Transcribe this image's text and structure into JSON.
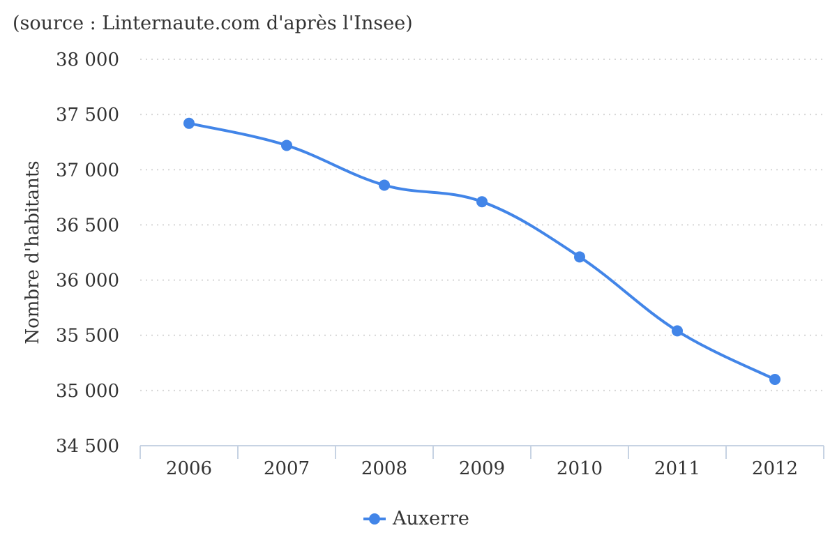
{
  "chart_data": {
    "type": "line",
    "subtitle": "(source : Linternaute.com d'après l'Insee)",
    "ylabel": "Nombre d'habitants",
    "xlabel": "",
    "categories": [
      "2006",
      "2007",
      "2008",
      "2009",
      "2010",
      "2011",
      "2012"
    ],
    "series": [
      {
        "name": "Auxerre",
        "color": "#4285e8",
        "values": [
          37420,
          37220,
          36860,
          36710,
          36210,
          35540,
          35100
        ]
      }
    ],
    "ylim": [
      34500,
      38000
    ],
    "yticks": [
      34500,
      35000,
      35500,
      36000,
      36500,
      37000,
      37500,
      38000
    ],
    "ytick_labels": [
      "34 500",
      "35 000",
      "35 500",
      "36 000",
      "36 500",
      "37 000",
      "37 500",
      "38 000"
    ],
    "grid": true,
    "legend_position": "bottom-center",
    "colors": {
      "axis": "#c7d3e3",
      "grid": "#d6d6d6",
      "text": "#333333"
    }
  }
}
